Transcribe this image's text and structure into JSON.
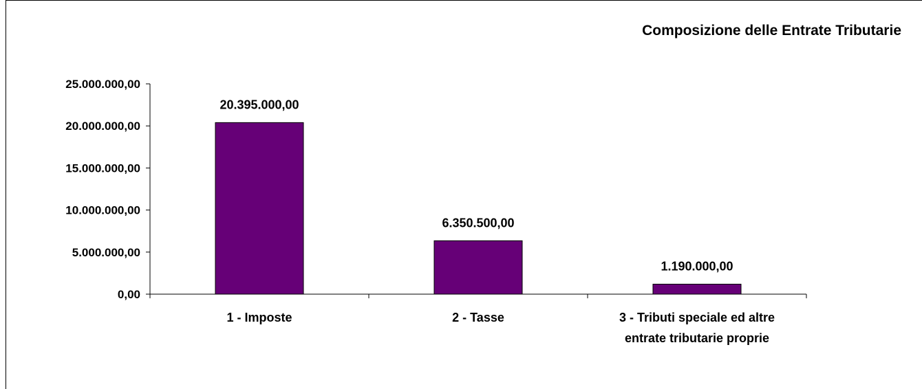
{
  "chart_data": {
    "type": "bar",
    "title": "Composizione delle Entrate Tributarie",
    "xlabel": "",
    "ylabel": "",
    "categories": [
      [
        "1 - Imposte"
      ],
      [
        "2 - Tasse"
      ],
      [
        "3 - Tributi speciale ed altre",
        "entrate tributarie proprie"
      ]
    ],
    "values": [
      20395000,
      6350500,
      1190000
    ],
    "value_labels": [
      "20.395.000,00",
      "6.350.500,00",
      "1.190.000,00"
    ],
    "ylim": [
      0,
      25000000
    ],
    "yticks": [
      0,
      5000000,
      10000000,
      15000000,
      20000000,
      25000000
    ],
    "ytick_labels": [
      "0,00",
      "5.000.000,00",
      "10.000.000,00",
      "15.000.000,00",
      "20.000.000,00",
      "25.000.000,00"
    ],
    "grid": false,
    "legend": "none",
    "bar_color": "#660077",
    "bar_edge_color": "#000000"
  }
}
